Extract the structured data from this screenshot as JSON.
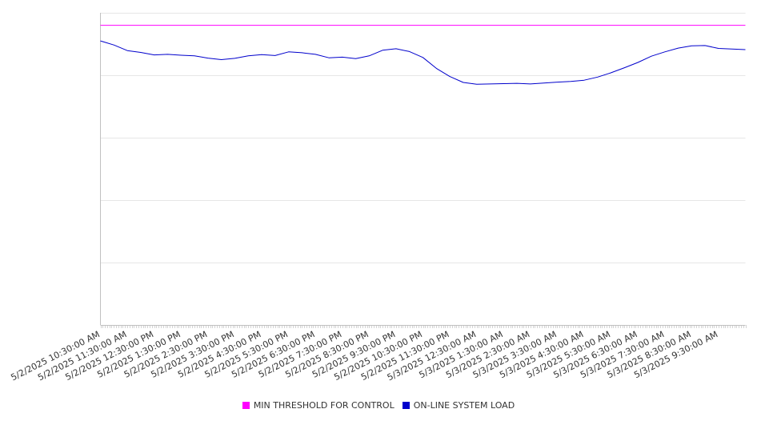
{
  "chart_data": {
    "type": "line",
    "title": "",
    "xlabel": "",
    "ylabel": "",
    "grid": true,
    "legend_position": "bottom",
    "x_start": "5/2/2025 10:30:00 AM",
    "x_end": "5/3/2025 10:30:00 AM",
    "ylim": [
      0,
      100
    ],
    "x_tick_labels": [
      "5/2/2025 10:30:00 AM",
      "5/2/2025 11:30:00 AM",
      "5/2/2025 12:30:00 PM",
      "5/2/2025 1:30:00 PM",
      "5/2/2025 2:30:00 PM",
      "5/2/2025 3:30:00 PM",
      "5/2/2025 4:30:00 PM",
      "5/2/2025 5:30:00 PM",
      "5/2/2025 6:30:00 PM",
      "5/2/2025 7:30:00 PM",
      "5/2/2025 8:30:00 PM",
      "5/2/2025 9:30:00 PM",
      "5/2/2025 10:30:00 PM",
      "5/2/2025 11:30:00 PM",
      "5/3/2025 12:30:00 AM",
      "5/3/2025 1:30:00 AM",
      "5/3/2025 2:30:00 AM",
      "5/3/2025 3:30:00 AM",
      "5/3/2025 4:30:00 AM",
      "5/3/2025 5:30:00 AM",
      "5/3/2025 6:30:00 AM",
      "5/3/2025 7:30:00 AM",
      "5/3/2025 8:30:00 AM",
      "5/3/2025 9:30:00 AM"
    ],
    "series": [
      {
        "name": "MIN THRESHOLD FOR CONTROL",
        "color": "#ff00ff",
        "x": [
          "5/2/2025 10:30:00 AM",
          "5/3/2025 10:30:00 AM"
        ],
        "values": [
          96,
          96
        ]
      },
      {
        "name": "ON-LINE SYSTEM LOAD",
        "color": "#0000cc",
        "x": [
          "5/2/2025 10:30:00 AM",
          "5/2/2025 11:00:00 AM",
          "5/2/2025 11:30:00 AM",
          "5/2/2025 12:00:00 PM",
          "5/2/2025 12:30:00 PM",
          "5/2/2025 1:00:00 PM",
          "5/2/2025 1:30:00 PM",
          "5/2/2025 2:00:00 PM",
          "5/2/2025 2:30:00 PM",
          "5/2/2025 3:00:00 PM",
          "5/2/2025 3:30:00 PM",
          "5/2/2025 4:00:00 PM",
          "5/2/2025 4:30:00 PM",
          "5/2/2025 5:00:00 PM",
          "5/2/2025 5:30:00 PM",
          "5/2/2025 6:00:00 PM",
          "5/2/2025 6:30:00 PM",
          "5/2/2025 7:00:00 PM",
          "5/2/2025 7:30:00 PM",
          "5/2/2025 8:00:00 PM",
          "5/2/2025 8:30:00 PM",
          "5/2/2025 9:00:00 PM",
          "5/2/2025 9:30:00 PM",
          "5/2/2025 10:00:00 PM",
          "5/2/2025 10:30:00 PM",
          "5/2/2025 11:00:00 PM",
          "5/2/2025 11:30:00 PM",
          "5/3/2025 12:00:00 AM",
          "5/3/2025 12:30:00 AM",
          "5/3/2025 1:00:00 AM",
          "5/3/2025 1:30:00 AM",
          "5/3/2025 2:00:00 AM",
          "5/3/2025 2:30:00 AM",
          "5/3/2025 3:00:00 AM",
          "5/3/2025 3:30:00 AM",
          "5/3/2025 4:00:00 AM",
          "5/3/2025 4:30:00 AM",
          "5/3/2025 5:00:00 AM",
          "5/3/2025 5:30:00 AM",
          "5/3/2025 6:00:00 AM",
          "5/3/2025 6:30:00 AM",
          "5/3/2025 7:00:00 AM",
          "5/3/2025 7:30:00 AM",
          "5/3/2025 8:00:00 AM",
          "5/3/2025 8:30:00 AM",
          "5/3/2025 9:00:00 AM",
          "5/3/2025 9:30:00 AM",
          "5/3/2025 10:00:00 AM",
          "5/3/2025 10:30:00 AM"
        ],
        "values": [
          91.0,
          89.7,
          87.9,
          87.3,
          86.5,
          86.7,
          86.4,
          86.2,
          85.5,
          85.0,
          85.4,
          86.2,
          86.6,
          86.3,
          87.5,
          87.2,
          86.7,
          85.6,
          85.8,
          85.3,
          86.2,
          88.0,
          88.5,
          87.6,
          85.7,
          82.2,
          79.6,
          77.7,
          77.1,
          77.2,
          77.3,
          77.4,
          77.2,
          77.5,
          77.8,
          78.0,
          78.4,
          79.4,
          80.8,
          82.4,
          84.1,
          86.1,
          87.5,
          88.7,
          89.4,
          89.5,
          88.6,
          88.4,
          88.2
        ]
      }
    ]
  }
}
